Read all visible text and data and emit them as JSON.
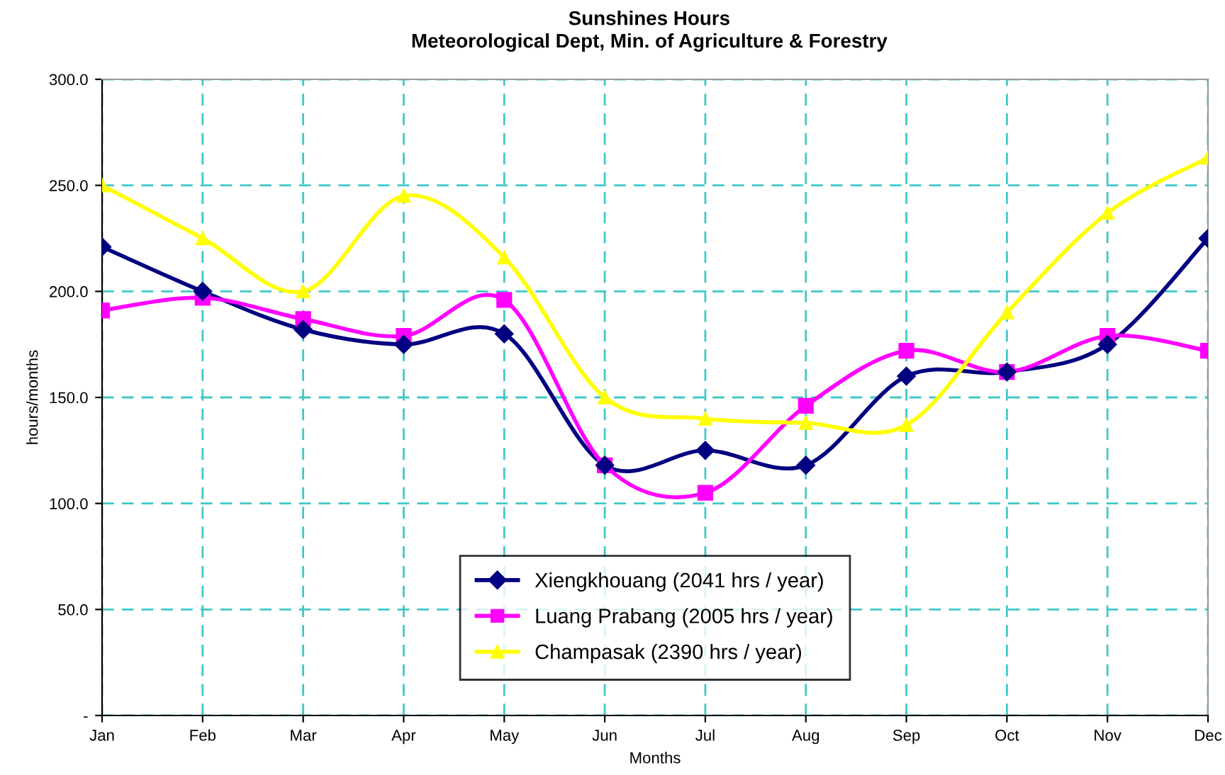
{
  "chart_data": {
    "type": "line",
    "title": "Sunshines Hours",
    "subtitle": "Meteorological Dept, Min. of Agriculture & Forestry",
    "xlabel": "Months",
    "ylabel": "hours/months",
    "categories": [
      "Jan",
      "Feb",
      "Mar",
      "Apr",
      "May",
      "Jun",
      "Jul",
      "Aug",
      "Sep",
      "Oct",
      "Nov",
      "Dec"
    ],
    "series": [
      {
        "name": "Xiengkhouang (2041 hrs / year)",
        "color": "#000080",
        "marker": "diamond",
        "values": [
          221,
          200,
          182,
          175,
          180,
          118,
          125,
          118,
          160,
          162,
          175,
          225
        ]
      },
      {
        "name": "Luang Prabang (2005 hrs / year)",
        "color": "#ff00ff",
        "marker": "square",
        "values": [
          191,
          197,
          187,
          179,
          196,
          118,
          105,
          146,
          172,
          162,
          179,
          172
        ]
      },
      {
        "name": "Champasak (2390 hrs / year)",
        "color": "#ffff00",
        "marker": "triangle",
        "values": [
          250,
          225,
          200,
          245,
          216,
          150,
          140,
          138,
          137,
          190,
          237,
          263
        ]
      }
    ],
    "ylim": [
      0,
      300
    ],
    "yticks": [
      {
        "value": 0,
        "label": "-"
      },
      {
        "value": 50,
        "label": "50.0"
      },
      {
        "value": 100,
        "label": "100.0"
      },
      {
        "value": 150,
        "label": "150.0"
      },
      {
        "value": 200,
        "label": "200.0"
      },
      {
        "value": 250,
        "label": "250.0"
      },
      {
        "value": 300,
        "label": "300.0"
      }
    ],
    "grid": true,
    "legend": "bottom",
    "line_style": "solid"
  }
}
